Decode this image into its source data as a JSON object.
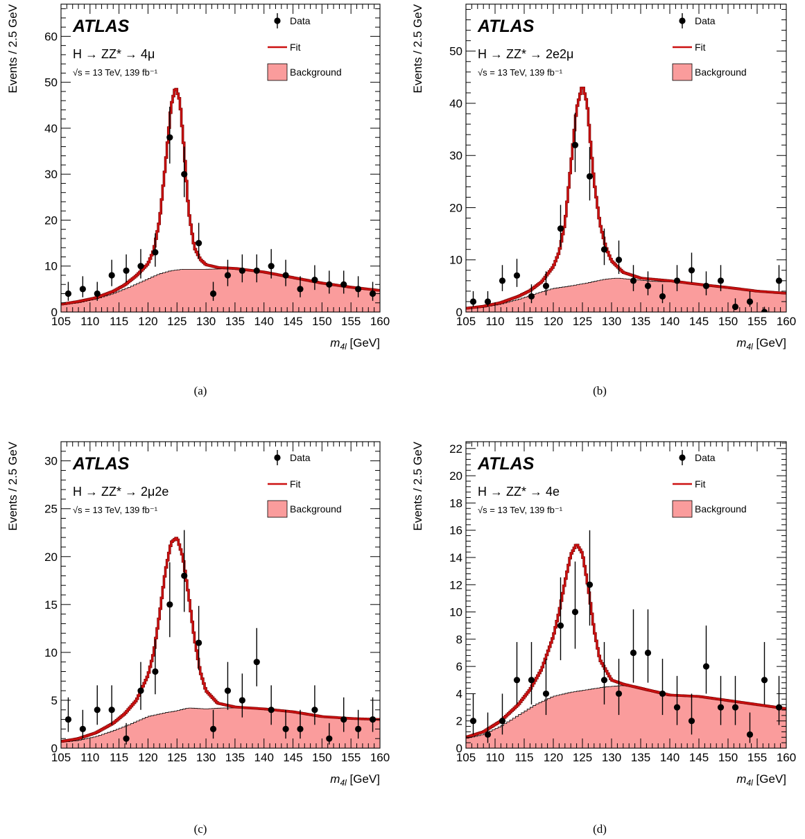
{
  "chart_data": [
    {
      "panel": "a",
      "caption": "(a)",
      "type": "scatter",
      "experiment": "ATLAS",
      "process": "H → ZZ* → 4μ",
      "energy_label": "√s = 13 TeV, 139 fb⁻¹",
      "xlabel": "m4l [GeV]",
      "ylabel": "Events / 2.5 GeV",
      "xlim": [
        105,
        160
      ],
      "ylim": [
        0,
        67
      ],
      "x_ticks": [
        105,
        110,
        115,
        120,
        125,
        130,
        135,
        140,
        145,
        150,
        155,
        160
      ],
      "y_ticks": [
        0,
        10,
        20,
        30,
        40,
        50,
        60
      ],
      "legend": {
        "placement": "top-right",
        "entries": [
          "Data",
          "Fit",
          "Background"
        ]
      },
      "data": {
        "x": [
          106.25,
          108.75,
          111.25,
          113.75,
          116.25,
          118.75,
          121.25,
          123.75,
          126.25,
          128.75,
          131.25,
          133.75,
          136.25,
          138.75,
          141.25,
          143.75,
          146.25,
          148.75,
          151.25,
          153.75,
          156.25,
          158.75
        ],
        "y": [
          4,
          5,
          4,
          8,
          9,
          10,
          13,
          38,
          30,
          15,
          4,
          8,
          9,
          9,
          10,
          8,
          5,
          7,
          6,
          6,
          5,
          4
        ]
      },
      "background": {
        "x": [
          105,
          108,
          111,
          114,
          117,
          120,
          122,
          124,
          126,
          128,
          130,
          133,
          136,
          140,
          145,
          150,
          155,
          160
        ],
        "y": [
          1.5,
          2.0,
          2.8,
          4.0,
          5.5,
          7.2,
          8.3,
          9.0,
          9.3,
          9.3,
          9.3,
          9.4,
          9.2,
          8.6,
          7.5,
          6.3,
          5.4,
          4.7
        ]
      },
      "fit": {
        "x": [
          105,
          108,
          111,
          114,
          116,
          118,
          120,
          121,
          122,
          123,
          124,
          124.75,
          125.5,
          126.25,
          127,
          128,
          129,
          130,
          132,
          135,
          140,
          145,
          150,
          155,
          160
        ],
        "y": [
          1.7,
          2.3,
          3.1,
          4.5,
          5.9,
          7.9,
          10.5,
          13.5,
          20,
          32,
          45,
          49,
          46,
          35,
          22,
          14,
          11.5,
          10.3,
          9.7,
          9.5,
          8.7,
          7.5,
          6.3,
          5.4,
          4.7
        ]
      }
    },
    {
      "panel": "b",
      "caption": "(b)",
      "type": "scatter",
      "experiment": "ATLAS",
      "process": "H → ZZ* → 2e2μ",
      "energy_label": "√s = 13 TeV, 139 fb⁻¹",
      "xlabel": "m4l [GeV]",
      "ylabel": "Events / 2.5 GeV",
      "xlim": [
        105,
        160
      ],
      "ylim": [
        0,
        59
      ],
      "x_ticks": [
        105,
        110,
        115,
        120,
        125,
        130,
        135,
        140,
        145,
        150,
        155,
        160
      ],
      "y_ticks": [
        0,
        10,
        20,
        30,
        40,
        50
      ],
      "legend": {
        "placement": "top-right",
        "entries": [
          "Data",
          "Fit",
          "Background"
        ]
      },
      "data": {
        "x": [
          106.25,
          108.75,
          111.25,
          113.75,
          116.25,
          118.75,
          121.25,
          123.75,
          126.25,
          128.75,
          131.25,
          133.75,
          136.25,
          138.75,
          141.25,
          143.75,
          146.25,
          148.75,
          151.25,
          153.75,
          156.25,
          158.75
        ],
        "y": [
          2,
          2,
          6,
          7,
          3,
          5,
          16,
          32,
          26,
          12,
          10,
          6,
          5,
          3,
          6,
          8,
          5,
          6,
          1,
          2,
          0,
          6
        ]
      },
      "background": {
        "x": [
          105,
          108,
          111,
          114,
          117,
          120,
          123,
          126,
          129,
          131,
          134,
          137,
          140,
          145,
          150,
          153,
          156,
          160
        ],
        "y": [
          0.6,
          0.9,
          1.5,
          2.4,
          3.5,
          4.5,
          5.0,
          5.6,
          6.3,
          6.5,
          6.2,
          5.9,
          5.8,
          5.2,
          4.6,
          4.4,
          3.9,
          3.6
        ]
      },
      "fit": {
        "x": [
          105,
          108,
          111,
          114,
          116,
          118,
          120,
          121,
          122,
          123,
          124,
          125,
          125.8,
          126.5,
          127,
          128,
          129,
          130,
          132,
          135,
          140,
          145,
          150,
          155,
          160
        ],
        "y": [
          0.7,
          1.1,
          1.8,
          3.0,
          4.1,
          5.8,
          8.7,
          11.5,
          17,
          28,
          39,
          43.5,
          40,
          31,
          25,
          17,
          12.5,
          9.8,
          7.6,
          6.5,
          6.0,
          5.3,
          4.7,
          4.0,
          3.6
        ]
      }
    },
    {
      "panel": "c",
      "caption": "(c)",
      "type": "scatter",
      "experiment": "ATLAS",
      "process": "H → ZZ* → 2μ2e",
      "energy_label": "√s = 13 TeV, 139 fb⁻¹",
      "xlabel": "m4l [GeV]",
      "ylabel": "Events / 2.5 GeV",
      "xlim": [
        105,
        160
      ],
      "ylim": [
        0,
        32
      ],
      "x_ticks": [
        105,
        110,
        115,
        120,
        125,
        130,
        135,
        140,
        145,
        150,
        155,
        160
      ],
      "y_ticks": [
        0,
        5,
        10,
        15,
        20,
        25,
        30
      ],
      "legend": {
        "placement": "top-right",
        "entries": [
          "Data",
          "Fit",
          "Background"
        ]
      },
      "data": {
        "x": [
          106.25,
          108.75,
          111.25,
          113.75,
          116.25,
          118.75,
          121.25,
          123.75,
          126.25,
          128.75,
          131.25,
          133.75,
          136.25,
          138.75,
          141.25,
          143.75,
          146.25,
          148.75,
          151.25,
          153.75,
          156.25,
          158.75
        ],
        "y": [
          3,
          2,
          4,
          4,
          1,
          6,
          8,
          15,
          18,
          11,
          2,
          6,
          5,
          9,
          4,
          2,
          2,
          4,
          1,
          3,
          2,
          3
        ]
      },
      "background": {
        "x": [
          105,
          108,
          111,
          114,
          117,
          120,
          123,
          125,
          127,
          130,
          133,
          136,
          140,
          145,
          150,
          155,
          160
        ],
        "y": [
          0.6,
          0.8,
          1.2,
          1.8,
          2.5,
          3.3,
          3.7,
          3.9,
          4.2,
          4.1,
          4.2,
          4.2,
          4.1,
          3.8,
          3.3,
          3.1,
          3.0
        ]
      },
      "fit": {
        "x": [
          105,
          108,
          111,
          114,
          116,
          118,
          120,
          121,
          122,
          123,
          124,
          125,
          126,
          127,
          128,
          129,
          130,
          132,
          135,
          140,
          145,
          150,
          155,
          160
        ],
        "y": [
          0.7,
          1.0,
          1.6,
          2.6,
          3.6,
          5.0,
          7.6,
          10,
          14,
          18.5,
          21.5,
          22,
          20,
          16,
          11.5,
          8,
          6,
          4.7,
          4.3,
          4.1,
          3.8,
          3.3,
          3.1,
          3.0
        ]
      }
    },
    {
      "panel": "d",
      "caption": "(d)",
      "type": "scatter",
      "experiment": "ATLAS",
      "process": "H → ZZ* → 4e",
      "energy_label": "√s = 13 TeV, 139 fb⁻¹",
      "xlabel": "m4l [GeV]",
      "ylabel": "Events / 2.5 GeV",
      "xlim": [
        105,
        160
      ],
      "ylim": [
        0,
        22.5
      ],
      "x_ticks": [
        105,
        110,
        115,
        120,
        125,
        130,
        135,
        140,
        145,
        150,
        155,
        160
      ],
      "y_ticks": [
        0,
        2,
        4,
        6,
        8,
        10,
        12,
        14,
        16,
        18,
        20,
        22
      ],
      "legend": {
        "placement": "top-right",
        "entries": [
          "Data",
          "Fit",
          "Background"
        ]
      },
      "data": {
        "x": [
          106.25,
          108.75,
          111.25,
          113.75,
          116.25,
          118.75,
          121.25,
          123.75,
          126.25,
          128.75,
          131.25,
          133.75,
          136.25,
          138.75,
          141.25,
          143.75,
          146.25,
          148.75,
          151.25,
          153.75,
          156.25,
          158.75
        ],
        "y": [
          2,
          1,
          2,
          5,
          5,
          4,
          9,
          10,
          12,
          5,
          4,
          7,
          7,
          4,
          3,
          2,
          6,
          3,
          3,
          1,
          5,
          3
        ]
      },
      "background": {
        "x": [
          105,
          108,
          111,
          114,
          117,
          120,
          123,
          126,
          129,
          132,
          135,
          138,
          141,
          145,
          150,
          155,
          160
        ],
        "y": [
          0.7,
          1.0,
          1.6,
          2.4,
          3.2,
          3.8,
          4.1,
          4.3,
          4.5,
          4.6,
          4.4,
          4.1,
          3.9,
          3.8,
          3.5,
          3.2,
          2.9
        ]
      },
      "fit": {
        "x": [
          105,
          108,
          111,
          114,
          116,
          118,
          120,
          121,
          122,
          123,
          124,
          125,
          126,
          127,
          128,
          130,
          132,
          135,
          140,
          145,
          150,
          155,
          160
        ],
        "y": [
          0.8,
          1.2,
          2.0,
          3.2,
          4.3,
          5.8,
          8.2,
          10,
          12.2,
          14.2,
          15,
          14.3,
          11.8,
          8.7,
          6.5,
          5.0,
          4.7,
          4.4,
          3.9,
          3.8,
          3.5,
          3.2,
          2.9
        ]
      }
    }
  ]
}
